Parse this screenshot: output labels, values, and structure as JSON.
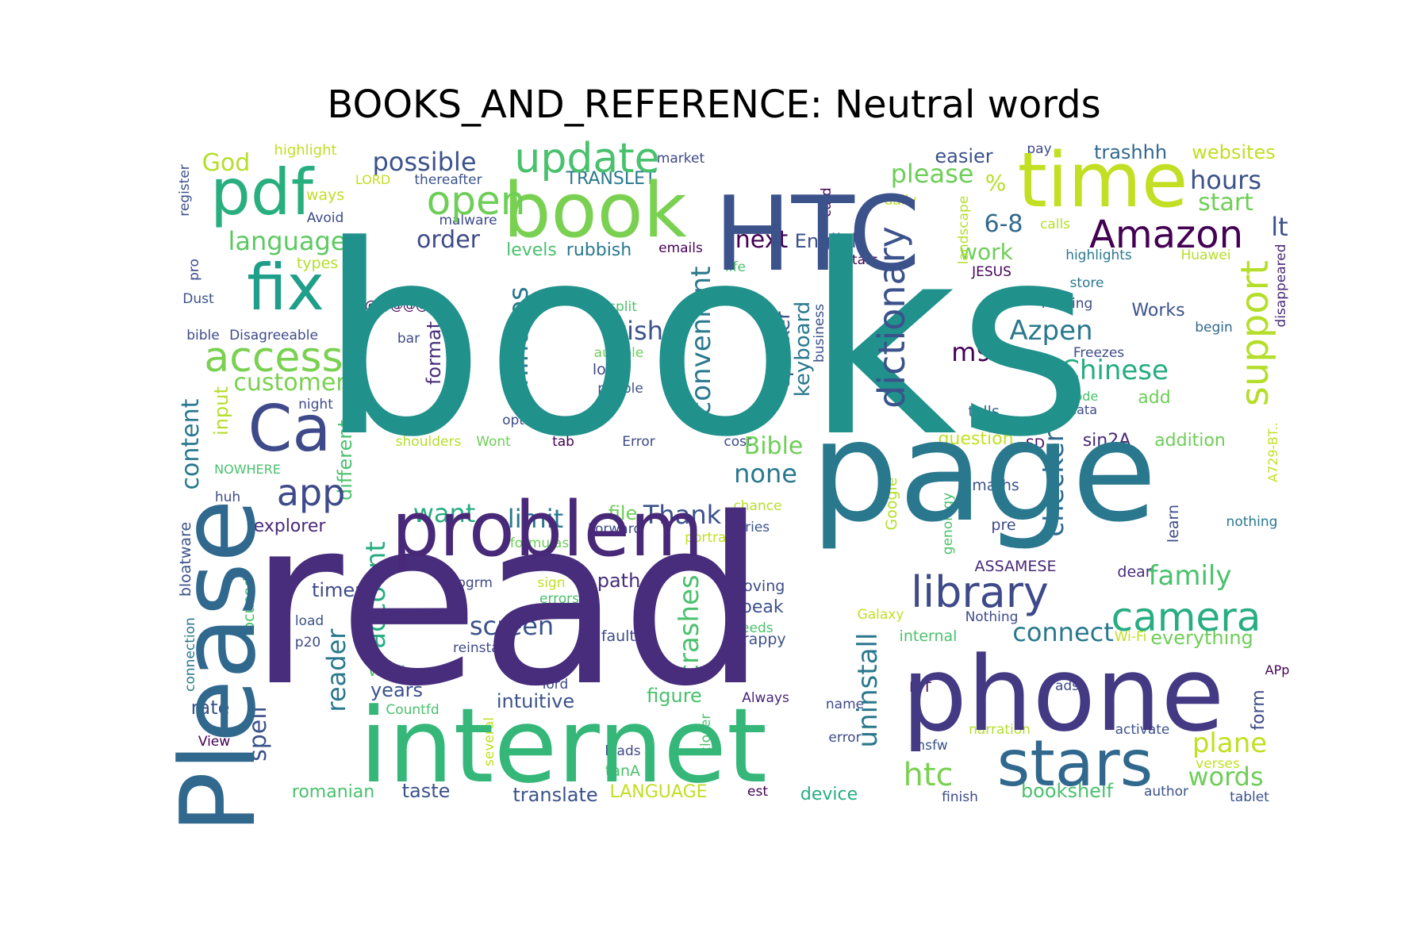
{
  "chart_data": {
    "type": "wordcloud",
    "title": "BOOKS_AND_REFERENCE: Neutral words",
    "colormap": "viridis",
    "words": [
      {
        "text": "books",
        "weight": 1.0,
        "color": "#21918c"
      },
      {
        "text": "read",
        "weight": 0.98,
        "color": "#472d7b"
      },
      {
        "text": "page",
        "weight": 0.62,
        "color": "#2a788e"
      },
      {
        "text": "internet",
        "weight": 0.47,
        "color": "#35b779"
      },
      {
        "text": "phone",
        "weight": 0.45,
        "color": "#443983"
      },
      {
        "text": "HTC",
        "weight": 0.42,
        "color": "#3b528b"
      },
      {
        "text": "Please",
        "weight": 0.38,
        "color": "#31688e"
      },
      {
        "text": "problem",
        "weight": 0.33,
        "color": "#482878"
      },
      {
        "text": "book",
        "weight": 0.32,
        "color": "#7ad151"
      },
      {
        "text": "time",
        "weight": 0.3,
        "color": "#c2df23"
      },
      {
        "text": "stars",
        "weight": 0.27,
        "color": "#31688e"
      },
      {
        "text": "pdf",
        "weight": 0.27,
        "color": "#29af7f"
      },
      {
        "text": "fix",
        "weight": 0.26,
        "color": "#1f9e89"
      },
      {
        "text": "Ca",
        "weight": 0.25,
        "color": "#3e4a89"
      },
      {
        "text": "access",
        "weight": 0.17,
        "color": "#7ad151"
      },
      {
        "text": "update",
        "weight": 0.16,
        "color": "#4ac16d"
      },
      {
        "text": "open",
        "weight": 0.15,
        "color": "#6ece58"
      },
      {
        "text": "support",
        "weight": 0.14,
        "color": "#b5de2b"
      },
      {
        "text": "library",
        "weight": 0.14,
        "color": "#3e4a89"
      },
      {
        "text": "camera",
        "weight": 0.13,
        "color": "#26ad81"
      },
      {
        "text": "Amazon",
        "weight": 0.13,
        "color": "#440154"
      },
      {
        "text": "app",
        "weight": 0.12,
        "color": "#3e4a89"
      },
      {
        "text": "dictionary",
        "weight": 0.12,
        "color": "#3b528b"
      }
    ]
  }
}
